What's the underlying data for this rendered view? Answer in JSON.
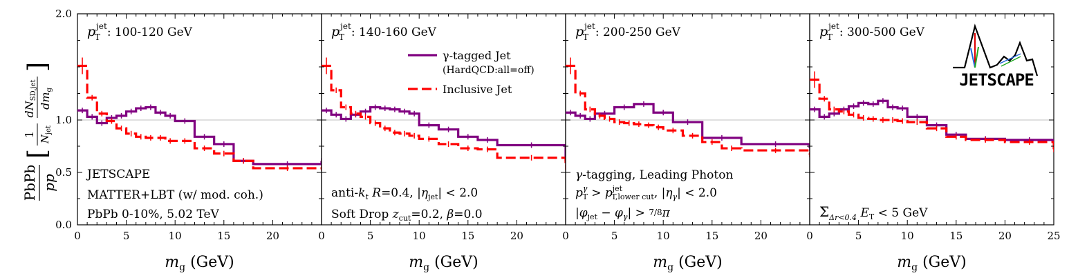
{
  "chart_data": {
    "type": "line",
    "ylabel_text": "PbPb / pp [ (1/N_jet) dN_SD,jet / dm_g ]",
    "xlabel_text": "m_g (GeV)",
    "ylim": [
      0.0,
      2.0
    ],
    "ytick_labels": [
      "0.0",
      "0.5",
      "1.0",
      "2.0"
    ],
    "ytick_values": [
      0.0,
      0.5,
      1.0,
      2.0
    ],
    "xlim": [
      0,
      25
    ],
    "xtick_values": [
      0,
      5,
      10,
      15,
      20
    ],
    "xtick_values_last": [
      0,
      5,
      10,
      15,
      20,
      25
    ],
    "reference_line": 1.0,
    "colors": {
      "gamma": "#800080",
      "inclusive": "#ff0000",
      "refline": "#aaaaaa"
    },
    "legend": {
      "gamma_label": "γ-tagged Jet",
      "gamma_sublabel": "(HardQCD:all=off)",
      "inclusive_label": "Inclusive Jet"
    },
    "logo_text": "JETSCAPE",
    "panels": [
      {
        "title_tex": "pT^jet: 100-120 GeV",
        "title_range": "100-120 GeV",
        "notes": [
          "JETSCAPE",
          "MATTER+LBT (w/ mod. coh.)",
          "PbPb 0-10%, 5.02 TeV"
        ],
        "series": [
          {
            "name": "γ-tagged Jet",
            "edges": [
              0,
              1,
              2,
              3,
              4,
              5,
              6,
              7,
              8,
              9,
              10,
              12,
              14,
              16,
              18,
              25
            ],
            "values": [
              1.09,
              1.03,
              0.97,
              1.02,
              1.04,
              1.08,
              1.11,
              1.12,
              1.07,
              1.04,
              0.99,
              0.84,
              0.77,
              0.61,
              0.58,
              0.61
            ]
          },
          {
            "name": "Inclusive Jet",
            "edges": [
              0,
              1,
              2,
              3,
              4,
              5,
              6,
              7,
              8,
              9,
              10,
              12,
              14,
              16,
              18,
              25
            ],
            "values": [
              1.51,
              1.21,
              1.06,
              0.99,
              0.92,
              0.87,
              0.84,
              0.83,
              0.83,
              0.8,
              0.8,
              0.73,
              0.68,
              0.61,
              0.54,
              0.54
            ]
          }
        ]
      },
      {
        "title_tex": "pT^jet: 140-160 GeV",
        "title_range": "140-160 GeV",
        "notes": [
          "anti-k_t R=0.4, |η_jet| < 2.0",
          "Soft Drop z_cut=0.2, β=0.0"
        ],
        "series": [
          {
            "name": "γ-tagged Jet",
            "edges": [
              0,
              1,
              2,
              3,
              4,
              5,
              6,
              7,
              8,
              9,
              10,
              12,
              14,
              16,
              18,
              25
            ],
            "values": [
              1.09,
              1.05,
              1.01,
              1.05,
              1.08,
              1.12,
              1.11,
              1.1,
              1.08,
              1.06,
              0.95,
              0.91,
              0.84,
              0.81,
              0.76,
              0.61
            ]
          },
          {
            "name": "Inclusive Jet",
            "edges": [
              0,
              1,
              2,
              3,
              4,
              5,
              6,
              7,
              8,
              9,
              10,
              12,
              14,
              16,
              18,
              25
            ],
            "values": [
              1.51,
              1.28,
              1.12,
              1.06,
              1.03,
              0.97,
              0.92,
              0.88,
              0.87,
              0.85,
              0.82,
              0.77,
              0.73,
              0.72,
              0.64,
              0.55
            ]
          }
        ]
      },
      {
        "title_tex": "pT^jet: 200-250 GeV",
        "title_range": "200-250 GeV",
        "notes": [
          "γ-tagging, Leading Photon",
          "pT^γ > pT,lower cut^jet, |η_γ| < 2.0",
          "|φ_jet − φ_γ| > 7/8 π"
        ],
        "series": [
          {
            "name": "γ-tagged Jet",
            "edges": [
              0,
              1,
              2,
              3,
              5,
              7,
              9,
              11,
              14,
              18,
              25
            ],
            "values": [
              1.07,
              1.04,
              1.01,
              1.06,
              1.12,
              1.15,
              1.07,
              0.98,
              0.83,
              0.77,
              0.73
            ]
          },
          {
            "name": "Inclusive Jet",
            "edges": [
              0,
              1,
              2,
              3,
              4,
              5,
              6,
              7,
              8,
              9,
              10,
              12,
              14,
              16,
              18,
              25
            ],
            "values": [
              1.51,
              1.25,
              1.1,
              1.04,
              1.01,
              0.98,
              0.97,
              0.96,
              0.95,
              0.93,
              0.9,
              0.85,
              0.79,
              0.73,
              0.71,
              0.67
            ]
          }
        ]
      },
      {
        "title_tex": "pT^jet: 300-500 GeV",
        "title_range": "300-500 GeV",
        "notes": [
          "Σ_{Δr<0.4} E_T < 5 GeV"
        ],
        "series": [
          {
            "name": "γ-tagged Jet",
            "edges": [
              0,
              1,
              2,
              3,
              4,
              5,
              6,
              7,
              8,
              9,
              10,
              12,
              14,
              16,
              20,
              25
            ],
            "values": [
              1.1,
              1.03,
              1.06,
              1.1,
              1.13,
              1.16,
              1.15,
              1.18,
              1.12,
              1.11,
              1.03,
              0.95,
              0.86,
              0.82,
              0.81
            ]
          },
          {
            "name": "Inclusive Jet",
            "edges": [
              0,
              1,
              2,
              3,
              4,
              5,
              6,
              7,
              8,
              9,
              10,
              12,
              14,
              16,
              20,
              25
            ],
            "values": [
              1.38,
              1.2,
              1.1,
              1.08,
              1.05,
              1.02,
              1.01,
              1.0,
              1.0,
              0.99,
              0.98,
              0.92,
              0.84,
              0.81,
              0.79,
              0.72
            ]
          }
        ]
      }
    ]
  }
}
